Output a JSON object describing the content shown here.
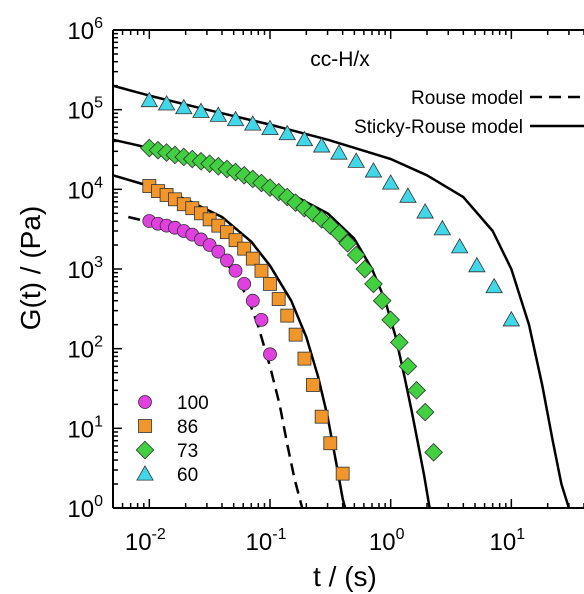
{
  "chart_data": {
    "type": "scatter",
    "title": "cc-H/x",
    "xlabel": "t / (s)",
    "ylabel": "G(t) / (Pa)",
    "xscale": "log",
    "yscale": "log",
    "xlim": [
      0.005,
      40
    ],
    "ylim": [
      1,
      1000000
    ],
    "x_ticks": [
      {
        "value": 0.01,
        "base": "10",
        "exp": "-2"
      },
      {
        "value": 0.1,
        "base": "10",
        "exp": "-1"
      },
      {
        "value": 1,
        "base": "10",
        "exp": "0"
      },
      {
        "value": 10,
        "base": "10",
        "exp": "1"
      }
    ],
    "y_ticks": [
      {
        "value": 1,
        "base": "10",
        "exp": "0"
      },
      {
        "value": 10,
        "base": "10",
        "exp": "1"
      },
      {
        "value": 100,
        "base": "10",
        "exp": "2"
      },
      {
        "value": 1000,
        "base": "10",
        "exp": "3"
      },
      {
        "value": 10000,
        "base": "10",
        "exp": "4"
      },
      {
        "value": 100000,
        "base": "10",
        "exp": "5"
      },
      {
        "value": 1000000,
        "base": "10",
        "exp": "6"
      }
    ],
    "legend_position": "bottom-left",
    "series": [
      {
        "name": "100",
        "marker": "circle",
        "color": "#e040e0",
        "points": [
          [
            0.01,
            4000
          ],
          [
            0.0118,
            3700
          ],
          [
            0.0139,
            3500
          ],
          [
            0.0163,
            3300
          ],
          [
            0.0193,
            3000
          ],
          [
            0.0227,
            2700
          ],
          [
            0.0268,
            2350
          ],
          [
            0.0316,
            2000
          ],
          [
            0.0373,
            1650
          ],
          [
            0.044,
            1280
          ],
          [
            0.0518,
            950
          ],
          [
            0.0611,
            650
          ],
          [
            0.072,
            400
          ],
          [
            0.085,
            230
          ],
          [
            0.1,
            85
          ]
        ]
      },
      {
        "name": "86",
        "marker": "square",
        "color": "#f0962a",
        "points": [
          [
            0.01,
            11000
          ],
          [
            0.0118,
            9500
          ],
          [
            0.0139,
            8500
          ],
          [
            0.0163,
            7500
          ],
          [
            0.0193,
            6500
          ],
          [
            0.0227,
            5800
          ],
          [
            0.0268,
            5000
          ],
          [
            0.0316,
            4200
          ],
          [
            0.0373,
            3500
          ],
          [
            0.044,
            2900
          ],
          [
            0.0518,
            2300
          ],
          [
            0.0611,
            1800
          ],
          [
            0.072,
            1350
          ],
          [
            0.085,
            950
          ],
          [
            0.1,
            650
          ],
          [
            0.118,
            420
          ],
          [
            0.139,
            260
          ],
          [
            0.163,
            150
          ],
          [
            0.193,
            75
          ],
          [
            0.227,
            35
          ],
          [
            0.268,
            14
          ],
          [
            0.316,
            6.5
          ],
          [
            0.4,
            2.7
          ]
        ]
      },
      {
        "name": "73",
        "marker": "diamond",
        "color": "#40d040",
        "points": [
          [
            0.01,
            33000
          ],
          [
            0.0118,
            31000
          ],
          [
            0.0139,
            29000
          ],
          [
            0.0163,
            27000
          ],
          [
            0.0193,
            25500
          ],
          [
            0.0227,
            24000
          ],
          [
            0.0268,
            22500
          ],
          [
            0.0316,
            21000
          ],
          [
            0.0373,
            19500
          ],
          [
            0.044,
            18000
          ],
          [
            0.0518,
            16500
          ],
          [
            0.0611,
            15000
          ],
          [
            0.072,
            13500
          ],
          [
            0.085,
            12000
          ],
          [
            0.1,
            10500
          ],
          [
            0.118,
            9200
          ],
          [
            0.139,
            8000
          ],
          [
            0.163,
            6800
          ],
          [
            0.193,
            5800
          ],
          [
            0.227,
            5000
          ],
          [
            0.268,
            4200
          ],
          [
            0.316,
            3500
          ],
          [
            0.373,
            2800
          ],
          [
            0.44,
            2100
          ],
          [
            0.518,
            1500
          ],
          [
            0.611,
            1000
          ],
          [
            0.72,
            650
          ],
          [
            0.85,
            400
          ],
          [
            1.0,
            230
          ],
          [
            1.18,
            120
          ],
          [
            1.39,
            60
          ],
          [
            1.64,
            30
          ],
          [
            1.93,
            16
          ],
          [
            2.27,
            5
          ]
        ]
      },
      {
        "name": "60",
        "marker": "triangle",
        "color": "#40d8e8",
        "points": [
          [
            0.01,
            130000
          ],
          [
            0.0139,
            118000
          ],
          [
            0.0193,
            106000
          ],
          [
            0.0268,
            95000
          ],
          [
            0.0373,
            85000
          ],
          [
            0.0518,
            75000
          ],
          [
            0.072,
            66000
          ],
          [
            0.1,
            58000
          ],
          [
            0.139,
            50000
          ],
          [
            0.193,
            42000
          ],
          [
            0.268,
            35000
          ],
          [
            0.373,
            28500
          ],
          [
            0.518,
            22500
          ],
          [
            0.72,
            17000
          ],
          [
            1.0,
            12000
          ],
          [
            1.39,
            8200
          ],
          [
            1.93,
            5200
          ],
          [
            2.68,
            3200
          ],
          [
            3.73,
            1900
          ],
          [
            5.18,
            1100
          ],
          [
            7.2,
            600
          ],
          [
            10,
            230
          ]
        ]
      }
    ],
    "model_curves": [
      {
        "legend_label": "Rouse model",
        "style": "dashed",
        "points": [
          [
            0.0067,
            4500
          ],
          [
            0.01,
            3900
          ],
          [
            0.015,
            3300
          ],
          [
            0.02,
            2800
          ],
          [
            0.03,
            2000
          ],
          [
            0.04,
            1400
          ],
          [
            0.05,
            900
          ],
          [
            0.06,
            550
          ],
          [
            0.07,
            330
          ],
          [
            0.08,
            190
          ],
          [
            0.1,
            60
          ],
          [
            0.12,
            20
          ],
          [
            0.14,
            6
          ],
          [
            0.16,
            2.3
          ],
          [
            0.185,
            1
          ]
        ]
      },
      {
        "legend_label": "Sticky-Rouse model",
        "style": "solid",
        "points": [
          [
            0.005,
            200000
          ],
          [
            0.01,
            150000
          ],
          [
            0.03,
            100000
          ],
          [
            0.1,
            65000
          ],
          [
            0.3,
            42000
          ],
          [
            1,
            24000
          ],
          [
            2,
            15000
          ],
          [
            4,
            8000
          ],
          [
            7,
            3000
          ],
          [
            10,
            1000
          ],
          [
            14,
            200
          ],
          [
            18,
            35
          ],
          [
            22,
            7
          ],
          [
            26,
            2
          ],
          [
            30,
            1
          ]
        ]
      },
      {
        "legend_label": "",
        "style": "solid",
        "points": [
          [
            0.005,
            42000
          ],
          [
            0.01,
            33000
          ],
          [
            0.03,
            22000
          ],
          [
            0.1,
            12000
          ],
          [
            0.3,
            5000
          ],
          [
            0.5,
            2400
          ],
          [
            0.7,
            1000
          ],
          [
            0.9,
            400
          ],
          [
            1.1,
            140
          ],
          [
            1.3,
            45
          ],
          [
            1.5,
            16
          ],
          [
            1.7,
            6
          ],
          [
            1.9,
            2.5
          ],
          [
            2.1,
            1
          ]
        ]
      },
      {
        "legend_label": "",
        "style": "solid",
        "points": [
          [
            0.005,
            15000
          ],
          [
            0.01,
            11000
          ],
          [
            0.02,
            7500
          ],
          [
            0.04,
            4500
          ],
          [
            0.07,
            2200
          ],
          [
            0.1,
            1100
          ],
          [
            0.15,
            400
          ],
          [
            0.2,
            140
          ],
          [
            0.25,
            45
          ],
          [
            0.3,
            14
          ],
          [
            0.35,
            4
          ],
          [
            0.4,
            1.3
          ],
          [
            0.42,
            1
          ]
        ]
      }
    ],
    "legend_labels": {
      "rouse": "Rouse model",
      "sticky": "Sticky-Rouse model"
    }
  }
}
